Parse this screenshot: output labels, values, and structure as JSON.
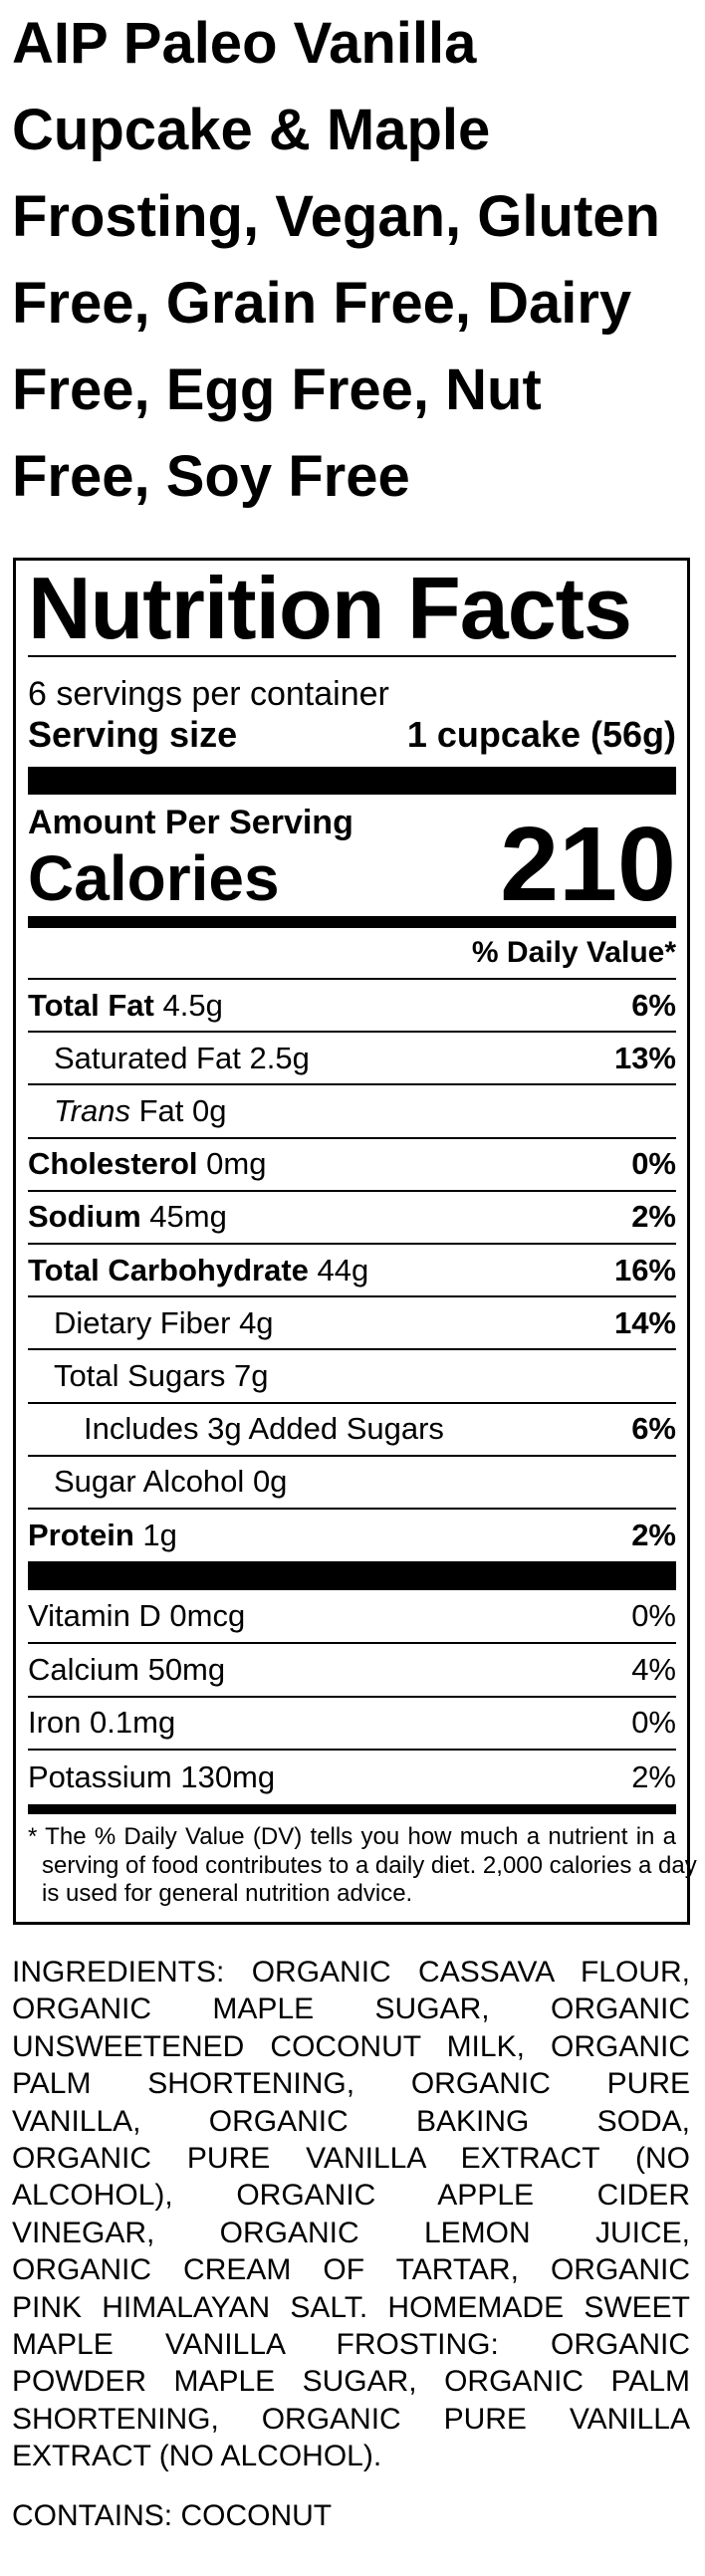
{
  "product_title_lines": [
    "AIP Paleo Vanilla",
    "Cupcake & Maple",
    "Frosting, Vegan, Gluten",
    "Free, Grain Free, Dairy",
    "Free, Egg Free, Nut",
    "Free, Soy Free"
  ],
  "nutrition": {
    "heading": "Nutrition Facts",
    "servings_per_container": "6 servings per container",
    "serving_size_label": "Serving size",
    "serving_size_value": "1 cupcake (56g)",
    "amount_per_serving": "Amount Per Serving",
    "calories_label": "Calories",
    "calories_value": "210",
    "daily_value_header": "% Daily Value*",
    "nutrients": [
      {
        "label": "Total Fat",
        "amount": "4.5g",
        "dv": "6%",
        "bold": true,
        "indent": 0
      },
      {
        "label": "Saturated Fat",
        "amount": "2.5g",
        "dv": "13%",
        "bold": false,
        "indent": 1
      },
      {
        "label_italic": "Trans",
        "label": "Fat",
        "amount": "0g",
        "dv": "",
        "bold": false,
        "indent": 1
      },
      {
        "label": "Cholesterol",
        "amount": "0mg",
        "dv": "0%",
        "bold": true,
        "indent": 0
      },
      {
        "label": "Sodium",
        "amount": "45mg",
        "dv": "2%",
        "bold": true,
        "indent": 0
      },
      {
        "label": "Total Carbohydrate",
        "amount": "44g",
        "dv": "16%",
        "bold": true,
        "indent": 0
      },
      {
        "label": "Dietary Fiber",
        "amount": "4g",
        "dv": "14%",
        "bold": false,
        "indent": 1
      },
      {
        "label": "Total Sugars",
        "amount": "7g",
        "dv": "",
        "bold": false,
        "indent": 1
      },
      {
        "label": "Includes 3g Added Sugars",
        "amount": "",
        "dv": "6%",
        "bold": false,
        "indent": 2
      },
      {
        "label": "Sugar Alcohol",
        "amount": "0g",
        "dv": "",
        "bold": false,
        "indent": 1
      },
      {
        "label": "Protein",
        "amount": "1g",
        "dv": "2%",
        "bold": true,
        "indent": 0
      }
    ],
    "vitamins": [
      {
        "label": "Vitamin D 0mcg",
        "dv": "0%"
      },
      {
        "label": "Calcium 50mg",
        "dv": "4%"
      },
      {
        "label": "Iron 0.1mg",
        "dv": "0%"
      },
      {
        "label": "Potassium 130mg",
        "dv": "2%"
      }
    ],
    "footnote_lines": [
      "* The % Daily Value (DV) tells you how much a nutrient in a",
      "serving of food contributes to a daily diet. 2,000 calories a day",
      "is used for general nutrition advice."
    ]
  },
  "ingredients_lines": [
    "INGREDIENTS: ORGANIC CASSAVA FLOUR,",
    "ORGANIC MAPLE SUGAR, ORGANIC",
    "UNSWEETENED COCONUT MILK, ORGANIC",
    "PALM SHORTENING, ORGANIC PURE",
    "VANILLA, ORGANIC BAKING SODA,",
    "ORGANIC PURE VANILLA EXTRACT (NO",
    "ALCOHOL), ORGANIC APPLE CIDER",
    "VINEGAR, ORGANIC LEMON JUICE,",
    "ORGANIC CREAM OF TARTAR, ORGANIC",
    "PINK HIMALAYAN SALT. HOMEMADE SWEET",
    "MAPLE VANILLA FROSTING: ORGANIC",
    "POWDER MAPLE SUGAR, ORGANIC PALM",
    "SHORTENING, ORGANIC PURE VANILLA",
    "EXTRACT (NO ALCOHOL)."
  ],
  "contains": "CONTAINS: COCONUT"
}
